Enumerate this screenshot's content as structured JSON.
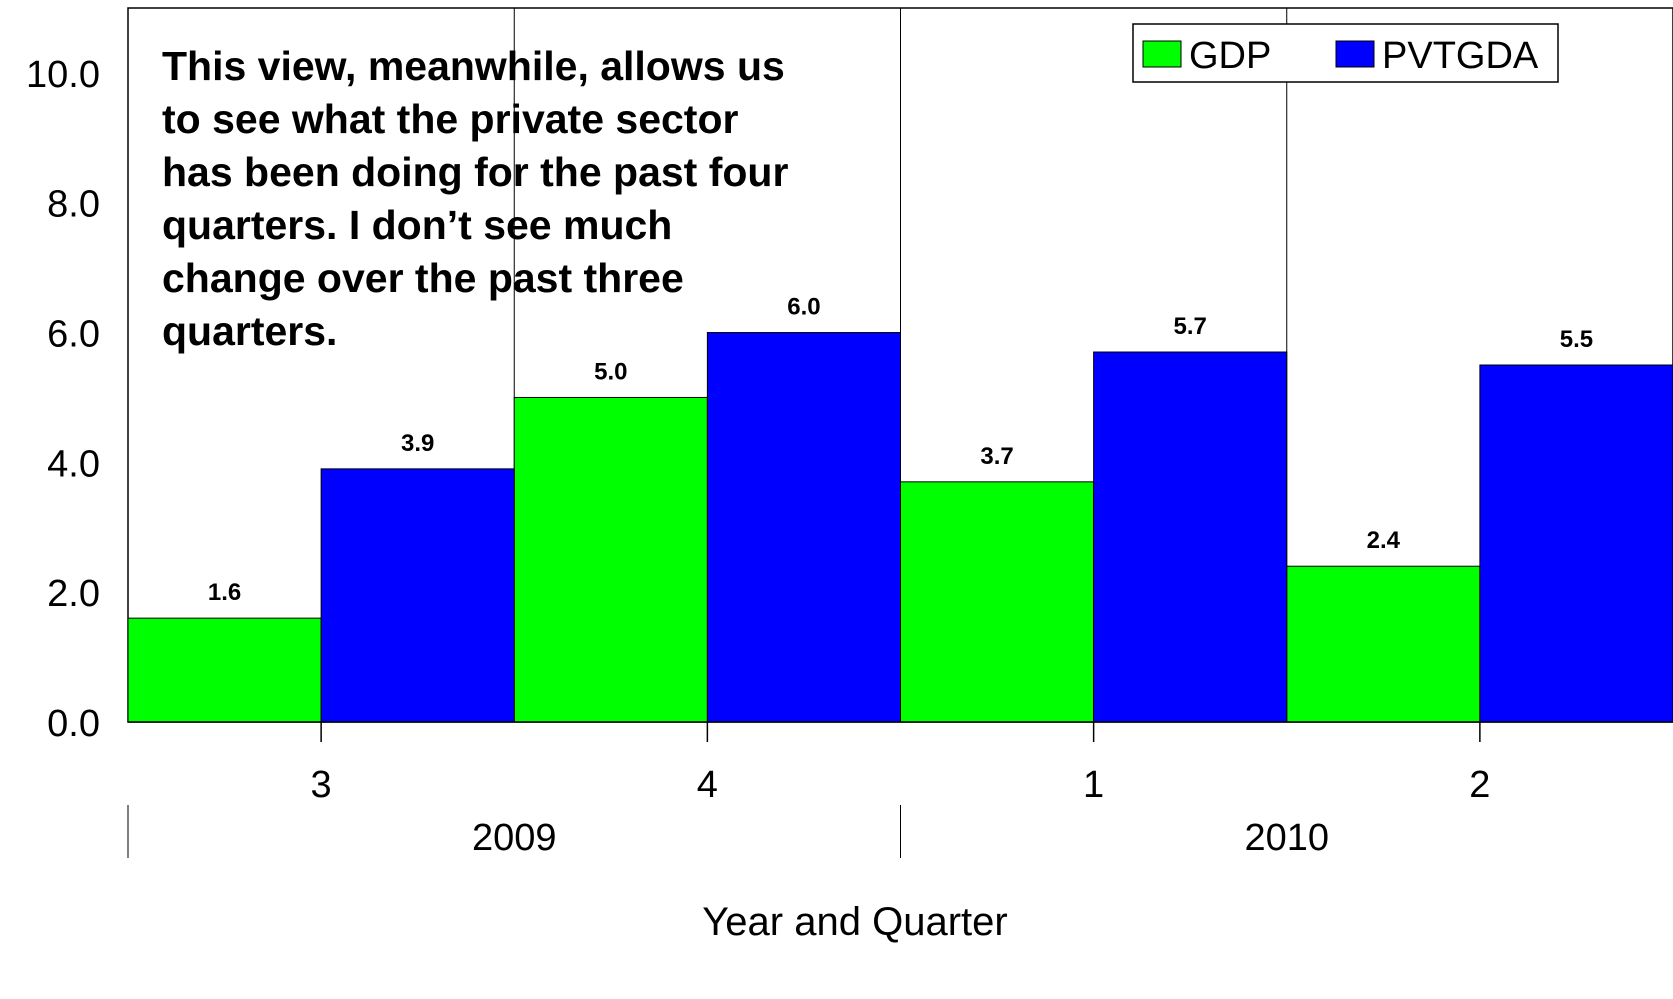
{
  "chart_data": {
    "type": "bar",
    "categories": [
      "3",
      "4",
      "1",
      "2"
    ],
    "groups": [
      {
        "label": "2009",
        "categories": [
          "3",
          "4"
        ]
      },
      {
        "label": "2010",
        "categories": [
          "1",
          "2"
        ]
      }
    ],
    "series": [
      {
        "name": "GDP",
        "color": "#00ff00",
        "values": [
          1.6,
          5.0,
          3.7,
          2.4
        ]
      },
      {
        "name": "PVTGDA",
        "color": "#0000ff",
        "values": [
          3.9,
          6.0,
          5.7,
          5.5
        ]
      }
    ],
    "data_labels": [
      [
        "1.6",
        "5.0",
        "3.7",
        "2.4"
      ],
      [
        "3.9",
        "6.0",
        "5.7",
        "5.5"
      ]
    ],
    "yticks": [
      "0.0",
      "2.0",
      "4.0",
      "6.0",
      "8.0",
      "10.0"
    ],
    "ylim": [
      0,
      11
    ],
    "xlabel": "Year and Quarter",
    "ylabel": "",
    "legend_position": "top-right",
    "annotation_lines": [
      "This view, meanwhile, allows us",
      "to see what the private sector",
      "has been doing for the past four",
      "quarters.  I don’t see much",
      "change over the past three",
      "quarters."
    ]
  }
}
